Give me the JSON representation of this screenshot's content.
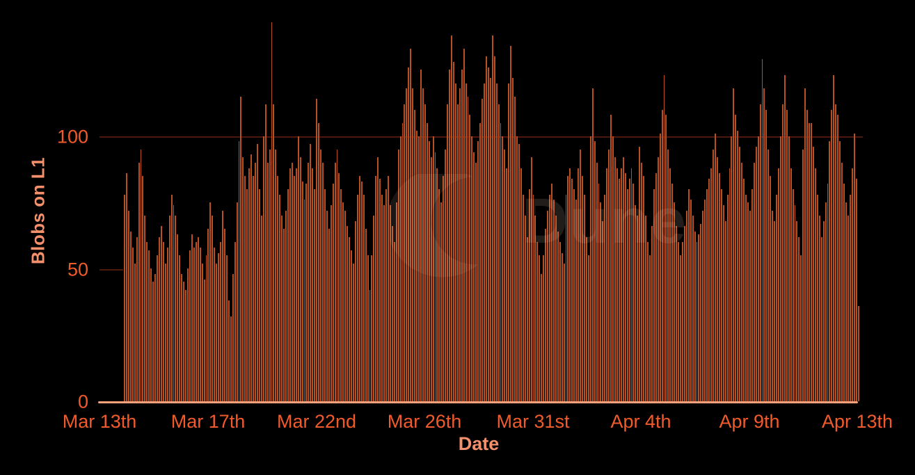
{
  "watermark": {
    "text": "Dune"
  },
  "chart_data": {
    "type": "bar",
    "title": "",
    "xlabel": "Date",
    "ylabel": "Blobs on L1",
    "x_tick_labels": [
      "Mar 13th",
      "Mar 17th",
      "Mar 22nd",
      "Mar 26th",
      "Mar 31st",
      "Apr 4th",
      "Apr 9th",
      "Apr 13th"
    ],
    "y_ticks": [
      0,
      50,
      100
    ],
    "y_ticks_display": [
      "0",
      "50",
      "100"
    ],
    "ylim": [
      0,
      147
    ],
    "x_note": "dense hourly bars from Mar 13 through Apr 13, sampled here at 2-hour resolution",
    "legend": "none",
    "grid": "single faint horizontal gridline at y=100",
    "colors": {
      "background": "#000000",
      "bar": "#b8511f",
      "tick_text": "#f15b2b",
      "axis_title_text": "#f4916c",
      "axis_line": "#f7a179",
      "gridline": "#4e170b",
      "watermark": "rgba(255,226,206,0.13)"
    },
    "values": [
      78,
      86,
      72,
      64,
      58,
      52,
      62,
      90,
      95,
      85,
      70,
      60,
      57,
      50,
      45,
      48,
      55,
      62,
      66,
      60,
      52,
      58,
      70,
      78,
      74,
      70,
      63,
      55,
      48,
      45,
      42,
      50,
      57,
      63,
      58,
      60,
      62,
      58,
      52,
      46,
      55,
      65,
      75,
      70,
      58,
      52,
      56,
      60,
      72,
      65,
      55,
      38,
      32,
      48,
      60,
      75,
      98,
      115,
      92,
      85,
      80,
      88,
      93,
      85,
      90,
      97,
      80,
      70,
      100,
      112,
      90,
      95,
      143,
      112,
      95,
      85,
      78,
      70,
      65,
      72,
      80,
      88,
      90,
      85,
      88,
      100,
      92,
      83,
      76,
      82,
      90,
      97,
      88,
      80,
      114,
      105,
      95,
      90,
      80,
      72,
      65,
      74,
      82,
      90,
      95,
      86,
      80,
      75,
      72,
      66,
      62,
      57,
      52,
      68,
      78,
      85,
      83,
      78,
      65,
      55,
      42,
      55,
      70,
      85,
      92,
      84,
      78,
      74,
      80,
      85,
      74,
      66,
      60,
      75,
      95,
      100,
      105,
      112,
      118,
      126,
      133,
      118,
      110,
      102,
      100,
      125,
      118,
      112,
      105,
      98,
      92,
      100,
      94,
      88,
      80,
      75,
      85,
      95,
      112,
      125,
      138,
      128,
      120,
      112,
      118,
      125,
      133,
      120,
      115,
      108,
      100,
      94,
      90,
      98,
      105,
      114,
      120,
      130,
      126,
      122,
      138,
      130,
      120,
      112,
      105,
      100,
      95,
      88,
      120,
      134,
      122,
      115,
      100,
      97,
      88,
      78,
      70,
      62,
      80,
      92,
      78,
      70,
      60,
      55,
      48,
      55,
      65,
      72,
      78,
      82,
      76,
      70,
      64,
      60,
      56,
      52,
      78,
      85,
      88,
      84,
      80,
      76,
      88,
      95,
      85,
      78,
      62,
      55,
      100,
      118,
      98,
      90,
      82,
      75,
      68,
      78,
      88,
      95,
      108,
      100,
      92,
      88,
      84,
      88,
      92,
      86,
      80,
      84,
      88,
      82,
      74,
      70,
      96,
      90,
      85,
      70,
      60,
      55,
      66,
      80,
      86,
      92,
      101,
      110,
      123,
      108,
      95,
      88,
      82,
      75,
      66,
      60,
      55,
      60,
      66,
      72,
      80,
      76,
      70,
      64,
      60,
      63,
      67,
      72,
      76,
      80,
      84,
      88,
      95,
      101,
      92,
      86,
      80,
      74,
      68,
      78,
      88,
      100,
      118,
      108,
      102,
      96,
      90,
      84,
      78,
      75,
      72,
      80,
      90,
      96,
      100,
      112,
      129,
      118,
      110,
      95,
      85,
      72,
      68,
      78,
      88,
      100,
      112,
      123,
      110,
      100,
      88,
      80,
      74,
      68,
      62,
      55,
      95,
      118,
      110,
      105,
      105,
      96,
      88,
      78,
      70,
      62,
      68,
      75,
      82,
      98,
      110,
      123,
      112,
      108,
      98,
      90,
      82,
      75,
      70,
      78,
      88,
      101,
      84,
      36
    ]
  }
}
